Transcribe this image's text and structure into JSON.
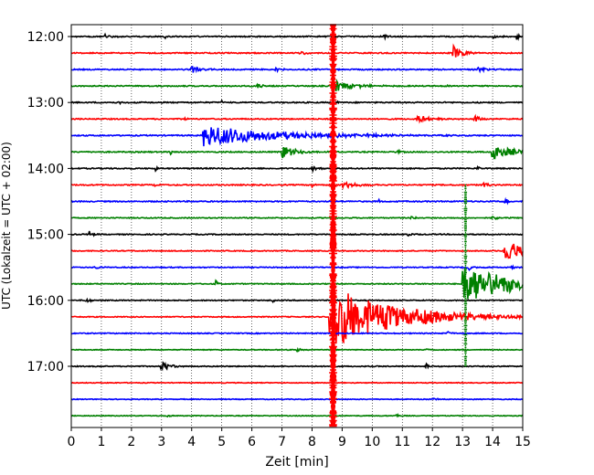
{
  "chart_data": {
    "type": "line",
    "chart_kind": "helicorder seismogram",
    "xlabel": "Zeit  [min]",
    "ylabel": "UTC (Lokalzeit = UTC + 02:00)",
    "xlim": [
      0,
      15
    ],
    "x_ticks": [
      "0",
      "1",
      "2",
      "3",
      "4",
      "5",
      "6",
      "7",
      "8",
      "9",
      "10",
      "11",
      "12",
      "13",
      "14",
      "15"
    ],
    "y_tick_labels": [
      "12:00",
      "13:00",
      "14:00",
      "15:00",
      "16:00",
      "17:00"
    ],
    "y_tick_rows": [
      0,
      4,
      8,
      12,
      16,
      20
    ],
    "grid": "vertical dotted lines at each minute",
    "row_interval_min": 15,
    "row_count": 24,
    "colors": [
      "#000000",
      "#ff0000",
      "#0000ff",
      "#008000"
    ],
    "traces": [
      {
        "row": 0,
        "noise": 0.6,
        "events": [
          {
            "t": 1.1,
            "amp": 3,
            "dur": 0.3
          },
          {
            "t": 3.1,
            "amp": 4,
            "dur": 0.08
          },
          {
            "t": 10.4,
            "amp": 3,
            "dur": 0.2
          },
          {
            "t": 14.0,
            "amp": 3,
            "dur": 0.2
          },
          {
            "t": 14.8,
            "amp": 5,
            "dur": 0.1
          }
        ]
      },
      {
        "row": 1,
        "noise": 0.6,
        "events": [
          {
            "t": 12.7,
            "amp": 8,
            "dur": 0.5
          },
          {
            "t": 7.6,
            "amp": 2,
            "dur": 0.3
          }
        ]
      },
      {
        "row": 2,
        "noise": 0.6,
        "events": [
          {
            "t": 4.0,
            "amp": 4,
            "dur": 0.6
          },
          {
            "t": 6.8,
            "amp": 2,
            "dur": 0.3
          },
          {
            "t": 13.5,
            "amp": 3,
            "dur": 0.4
          }
        ]
      },
      {
        "row": 3,
        "noise": 0.6,
        "events": [
          {
            "t": 8.8,
            "amp": 6,
            "dur": 1.0
          },
          {
            "t": 6.2,
            "amp": 3,
            "dur": 0.3
          },
          {
            "t": 12.5,
            "amp": 2,
            "dur": 0.3
          }
        ]
      },
      {
        "row": 4,
        "noise": 0.6,
        "events": [
          {
            "t": 8.7,
            "amp": 4,
            "dur": 0.15
          },
          {
            "t": 1.6,
            "amp": 2,
            "dur": 0.2
          },
          {
            "t": 5.0,
            "amp": 2,
            "dur": 0.2
          }
        ]
      },
      {
        "row": 5,
        "noise": 0.6,
        "events": [
          {
            "t": 11.5,
            "amp": 4,
            "dur": 0.8
          },
          {
            "t": 13.4,
            "amp": 5,
            "dur": 0.2
          },
          {
            "t": 3.8,
            "amp": 3,
            "dur": 0.1
          }
        ]
      },
      {
        "row": 6,
        "noise": 0.6,
        "events": [
          {
            "t": 4.4,
            "amp": 12,
            "dur": 3.8
          },
          {
            "t": 9.8,
            "amp": 2,
            "dur": 0.4
          }
        ]
      },
      {
        "row": 7,
        "noise": 0.6,
        "events": [
          {
            "t": 7.0,
            "amp": 7,
            "dur": 0.8
          },
          {
            "t": 14.0,
            "amp": 10,
            "dur": 0.9
          },
          {
            "t": 10.8,
            "amp": 3,
            "dur": 0.2
          },
          {
            "t": 3.3,
            "amp": 3,
            "dur": 0.15
          }
        ]
      },
      {
        "row": 8,
        "noise": 0.6,
        "events": [
          {
            "t": 2.8,
            "amp": 3,
            "dur": 0.1
          },
          {
            "t": 8.0,
            "amp": 3,
            "dur": 0.4
          },
          {
            "t": 13.5,
            "amp": 2,
            "dur": 0.2
          }
        ]
      },
      {
        "row": 9,
        "noise": 0.6,
        "events": [
          {
            "t": 9.0,
            "amp": 4,
            "dur": 0.8
          },
          {
            "t": 13.7,
            "amp": 4,
            "dur": 0.2
          },
          {
            "t": 2.8,
            "amp": 3,
            "dur": 0.1
          },
          {
            "t": 8.0,
            "amp": 3,
            "dur": 0.1
          }
        ]
      },
      {
        "row": 10,
        "noise": 0.6,
        "events": [
          {
            "t": 14.4,
            "amp": 4,
            "dur": 0.2
          },
          {
            "t": 10.2,
            "amp": 2,
            "dur": 0.2
          }
        ]
      },
      {
        "row": 11,
        "noise": 0.5,
        "events": [
          {
            "t": 11.3,
            "amp": 2,
            "dur": 0.3
          },
          {
            "t": 14.0,
            "amp": 2,
            "dur": 0.3
          }
        ]
      },
      {
        "row": 12,
        "noise": 0.5,
        "events": [
          {
            "t": 0.6,
            "amp": 5,
            "dur": 0.15
          },
          {
            "t": 11.2,
            "amp": 2,
            "dur": 0.3
          }
        ]
      },
      {
        "row": 13,
        "noise": 0.5,
        "events": [
          {
            "t": 14.4,
            "amp": 14,
            "dur": 0.9
          }
        ]
      },
      {
        "row": 14,
        "noise": 0.5,
        "events": [
          {
            "t": 0.8,
            "amp": 2,
            "dur": 0.3
          },
          {
            "t": 13.2,
            "amp": 3,
            "dur": 0.3
          },
          {
            "t": 14.6,
            "amp": 2,
            "dur": 0.3
          }
        ]
      },
      {
        "row": 15,
        "noise": 0.5,
        "events": [
          {
            "t": 4.8,
            "amp": 5,
            "dur": 0.1
          },
          {
            "t": 13.0,
            "amp": 22,
            "dur": 2.8
          }
        ]
      },
      {
        "row": 16,
        "noise": 0.5,
        "events": [
          {
            "t": 0.5,
            "amp": 3,
            "dur": 0.2
          },
          {
            "t": 6.7,
            "amp": 2,
            "dur": 0.1
          }
        ]
      },
      {
        "row": 17,
        "noise": 0.5,
        "events": [
          {
            "t": 8.6,
            "amp": 35,
            "dur": 3.4
          }
        ]
      },
      {
        "row": 18,
        "noise": 0.5,
        "events": [
          {
            "t": 12.5,
            "amp": 2,
            "dur": 0.3
          }
        ]
      },
      {
        "row": 19,
        "noise": 0.4,
        "events": [
          {
            "t": 7.5,
            "amp": 2,
            "dur": 0.2
          },
          {
            "t": 11.8,
            "amp": 2,
            "dur": 0.2
          }
        ]
      },
      {
        "row": 20,
        "noise": 0.5,
        "events": [
          {
            "t": 3.0,
            "amp": 6,
            "dur": 0.4
          },
          {
            "t": 11.8,
            "amp": 3,
            "dur": 0.1
          }
        ]
      },
      {
        "row": 21,
        "noise": 0.4,
        "events": []
      },
      {
        "row": 22,
        "noise": 0.4,
        "events": [
          {
            "t": 12.0,
            "amp": 2,
            "dur": 0.2
          }
        ]
      },
      {
        "row": 23,
        "noise": 0.4,
        "events": [
          {
            "t": 3.2,
            "amp": 2,
            "dur": 0.2
          },
          {
            "t": 10.8,
            "amp": 2,
            "dur": 0.2
          }
        ]
      }
    ],
    "vertical_events": [
      {
        "name": "strong-quake-red-spike",
        "t": 8.7,
        "color": "#ff0000",
        "from_row": -0.8,
        "to_row": 23.7,
        "kind": "band"
      },
      {
        "name": "green-spike-13min",
        "t": 13.1,
        "color": "#008000",
        "from_row": 9.0,
        "to_row": 20.0,
        "kind": "line"
      }
    ]
  }
}
